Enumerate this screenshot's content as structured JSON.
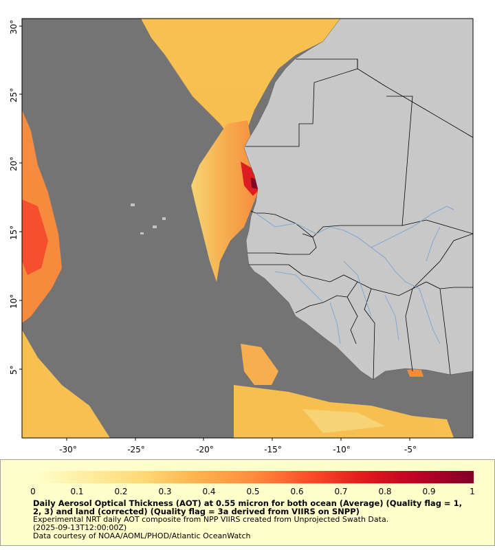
{
  "map": {
    "lat_labels": [
      "30°",
      "25°",
      "20°",
      "15°",
      "10°",
      "5°"
    ],
    "lon_labels": [
      "-30°",
      "-25°",
      "-20°",
      "-15°",
      "-10°",
      "-5°"
    ],
    "colors": {
      "ocean": "#747474",
      "land": "#c8c8c8",
      "border": "#000000",
      "river": "#6fa0d8"
    }
  },
  "legend": {
    "colorbar_labels": [
      "0",
      "0.1",
      "0.2",
      "0.3",
      "0.4",
      "0.5",
      "0.6",
      "0.7",
      "0.8",
      "0.9",
      "1"
    ],
    "colorbar_range": [
      0,
      1
    ],
    "colorbar_colors": [
      "#ffffcc",
      "#ffeda0",
      "#fed976",
      "#feb24c",
      "#fd8d3c",
      "#fc4e2a",
      "#e31a1c",
      "#bd0026",
      "#800026"
    ],
    "title": "Daily Aerosol Optical Thickness (AOT) at 0.55 micron for both ocean (Average) (Quality flag = 1, 2, 3) and land (corrected) (Quality flag = 3a derived from VIIRS on SNPP)",
    "line1": "Experimental NRT daily AOT composite from NPP VIIRS created from Unprojected Swath Data.",
    "line2": "(2025-09-13T12:00:00Z)",
    "line3": "Data courtesy of NOAA/AOML/PHOD/Atlantic OceanWatch"
  }
}
